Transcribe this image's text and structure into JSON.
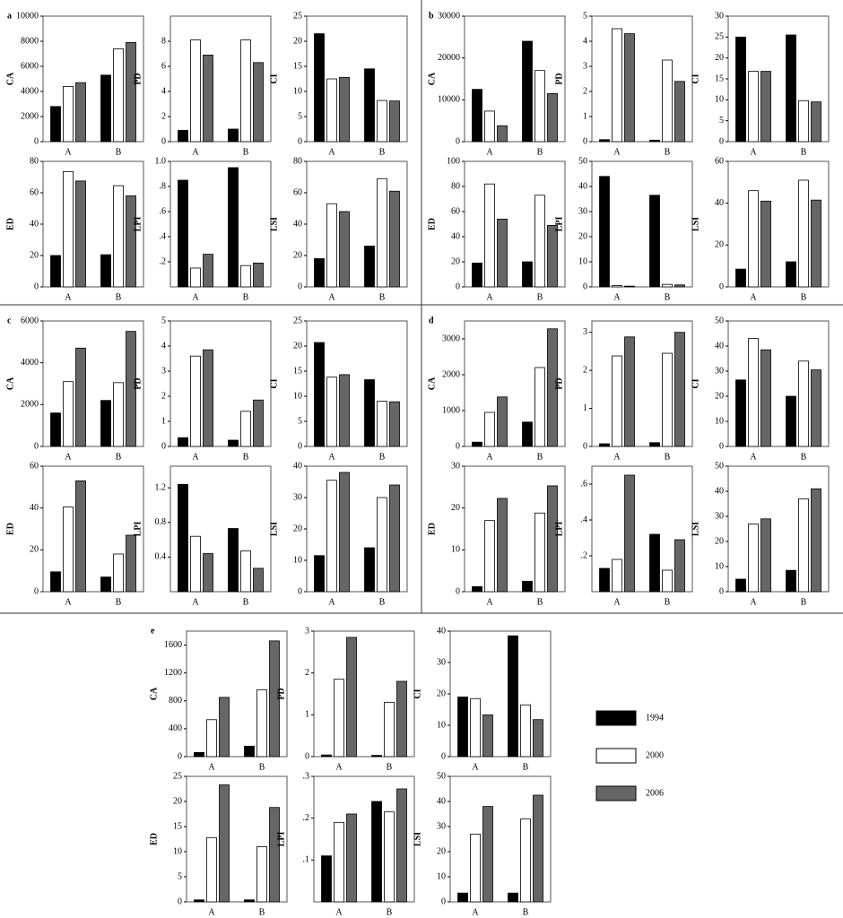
{
  "legend": {
    "series": [
      {
        "name": "1994",
        "color": "#000000"
      },
      {
        "name": "2000",
        "color": "#ffffff"
      },
      {
        "name": "2006",
        "color": "#666666"
      }
    ]
  },
  "chart_data": [
    {
      "type": "bar",
      "panel": "a",
      "ylabel": "CA",
      "categories": [
        "A",
        "B"
      ],
      "series": [
        {
          "values": [
            2800,
            5300
          ]
        },
        {
          "values": [
            4400,
            7400
          ]
        },
        {
          "values": [
            4700,
            7900
          ]
        }
      ],
      "ylim": [
        0,
        10000
      ],
      "yticks": [
        0,
        2000,
        4000,
        6000,
        8000,
        10000
      ]
    },
    {
      "type": "bar",
      "ylabel": "PD",
      "categories": [
        "A",
        "B"
      ],
      "series": [
        {
          "values": [
            0.9,
            1.0
          ]
        },
        {
          "values": [
            8.1,
            8.1
          ]
        },
        {
          "values": [
            6.9,
            6.3
          ]
        }
      ],
      "ylim": [
        0,
        10
      ],
      "yticks": [
        0,
        2,
        4,
        6,
        8
      ]
    },
    {
      "type": "bar",
      "ylabel": "CI",
      "categories": [
        "A",
        "B"
      ],
      "series": [
        {
          "values": [
            21.5,
            14.5
          ]
        },
        {
          "values": [
            12.5,
            8.2
          ]
        },
        {
          "values": [
            12.8,
            8.1
          ]
        }
      ],
      "ylim": [
        0,
        25
      ],
      "yticks": [
        0,
        5,
        10,
        15,
        20,
        25
      ]
    },
    {
      "type": "bar",
      "ylabel": "ED",
      "categories": [
        "A",
        "B"
      ],
      "series": [
        {
          "values": [
            20,
            20.5
          ]
        },
        {
          "values": [
            73.5,
            64.5
          ]
        },
        {
          "values": [
            67.5,
            58
          ]
        }
      ],
      "ylim": [
        0,
        80
      ],
      "yticks": [
        0,
        20,
        40,
        60,
        80
      ]
    },
    {
      "type": "bar",
      "ylabel": "LPI",
      "categories": [
        "A",
        "B"
      ],
      "series": [
        {
          "values": [
            0.85,
            0.95
          ]
        },
        {
          "values": [
            0.15,
            0.17
          ]
        },
        {
          "values": [
            0.26,
            0.19
          ]
        }
      ],
      "ylim": [
        0,
        1.0
      ],
      "yticks": [
        {
          "value": 0.2,
          "label": ".2"
        },
        {
          "value": 0.4,
          "label": ".4"
        },
        {
          "value": 0.6,
          "label": ".6"
        },
        {
          "value": 0.8,
          "label": ".8"
        },
        {
          "value": 1.0,
          "label": "1.0"
        }
      ]
    },
    {
      "type": "bar",
      "ylabel": "LSI",
      "categories": [
        "A",
        "B"
      ],
      "series": [
        {
          "values": [
            18,
            26
          ]
        },
        {
          "values": [
            53,
            69
          ]
        },
        {
          "values": [
            48,
            61
          ]
        }
      ],
      "ylim": [
        0,
        80
      ],
      "yticks": [
        0,
        20,
        40,
        60,
        80
      ]
    },
    {
      "type": "bar",
      "panel": "b",
      "ylabel": "CA",
      "categories": [
        "A",
        "B"
      ],
      "series": [
        {
          "values": [
            12500,
            24000
          ]
        },
        {
          "values": [
            7300,
            17000
          ]
        },
        {
          "values": [
            3800,
            11500
          ]
        }
      ],
      "ylim": [
        0,
        30000
      ],
      "yticks": [
        0,
        10000,
        20000,
        30000
      ]
    },
    {
      "type": "bar",
      "ylabel": "PD",
      "categories": [
        "A",
        "B"
      ],
      "series": [
        {
          "values": [
            0.08,
            0.06
          ]
        },
        {
          "values": [
            4.5,
            3.25
          ]
        },
        {
          "values": [
            4.3,
            2.4
          ]
        }
      ],
      "ylim": [
        0,
        5
      ],
      "yticks": [
        0,
        1,
        2,
        3,
        4,
        5
      ]
    },
    {
      "type": "bar",
      "ylabel": "CI",
      "categories": [
        "A",
        "B"
      ],
      "series": [
        {
          "values": [
            25,
            25.5
          ]
        },
        {
          "values": [
            16.8,
            9.8
          ]
        },
        {
          "values": [
            16.8,
            9.5
          ]
        }
      ],
      "ylim": [
        0,
        30
      ],
      "yticks": [
        0,
        5,
        10,
        15,
        20,
        25,
        30
      ]
    },
    {
      "type": "bar",
      "ylabel": "ED",
      "categories": [
        "A",
        "B"
      ],
      "series": [
        {
          "values": [
            19,
            20
          ]
        },
        {
          "values": [
            82,
            73
          ]
        },
        {
          "values": [
            54,
            49
          ]
        }
      ],
      "ylim": [
        0,
        100
      ],
      "yticks": [
        0,
        20,
        40,
        60,
        80,
        100
      ]
    },
    {
      "type": "bar",
      "ylabel": "LPI",
      "categories": [
        "A",
        "B"
      ],
      "series": [
        {
          "values": [
            44,
            36.5
          ]
        },
        {
          "values": [
            0.5,
            1
          ]
        },
        {
          "values": [
            0.3,
            0.8
          ]
        }
      ],
      "ylim": [
        0,
        50
      ],
      "yticks": [
        0,
        10,
        20,
        30,
        40,
        50
      ]
    },
    {
      "type": "bar",
      "ylabel": "LSI",
      "categories": [
        "A",
        "B"
      ],
      "series": [
        {
          "values": [
            8.5,
            12
          ]
        },
        {
          "values": [
            46,
            51
          ]
        },
        {
          "values": [
            41,
            41.5
          ]
        }
      ],
      "ylim": [
        0,
        60
      ],
      "yticks": [
        0,
        20,
        40,
        60
      ]
    },
    {
      "type": "bar",
      "panel": "c",
      "ylabel": "CA",
      "categories": [
        "A",
        "B"
      ],
      "series": [
        {
          "values": [
            1600,
            2200
          ]
        },
        {
          "values": [
            3100,
            3050
          ]
        },
        {
          "values": [
            4700,
            5500
          ]
        }
      ],
      "ylim": [
        0,
        6000
      ],
      "yticks": [
        0,
        2000,
        4000,
        6000
      ]
    },
    {
      "type": "bar",
      "ylabel": "PD",
      "categories": [
        "A",
        "B"
      ],
      "series": [
        {
          "values": [
            0.35,
            0.25
          ]
        },
        {
          "values": [
            3.6,
            1.4
          ]
        },
        {
          "values": [
            3.85,
            1.85
          ]
        }
      ],
      "ylim": [
        0,
        5
      ],
      "yticks": [
        0,
        1,
        2,
        3,
        4,
        5
      ]
    },
    {
      "type": "bar",
      "ylabel": "CI",
      "categories": [
        "A",
        "B"
      ],
      "series": [
        {
          "values": [
            20.7,
            13.3
          ]
        },
        {
          "values": [
            13.8,
            9
          ]
        },
        {
          "values": [
            14.3,
            8.9
          ]
        }
      ],
      "ylim": [
        0,
        25
      ],
      "yticks": [
        0,
        5,
        10,
        15,
        20,
        25
      ]
    },
    {
      "type": "bar",
      "ylabel": "ED",
      "categories": [
        "A",
        "B"
      ],
      "series": [
        {
          "values": [
            9.5,
            7
          ]
        },
        {
          "values": [
            40.5,
            18
          ]
        },
        {
          "values": [
            53,
            27
          ]
        }
      ],
      "ylim": [
        0,
        60
      ],
      "yticks": [
        0,
        20,
        40,
        60
      ]
    },
    {
      "type": "bar",
      "ylabel": "LPI",
      "categories": [
        "A",
        "B"
      ],
      "series": [
        {
          "values": [
            1.24,
            0.73
          ]
        },
        {
          "values": [
            0.64,
            0.47
          ]
        },
        {
          "values": [
            0.44,
            0.27
          ]
        }
      ],
      "ylim": [
        0,
        1.45
      ],
      "yticks": [
        0.4,
        0.8,
        1.2
      ]
    },
    {
      "type": "bar",
      "ylabel": "LSI",
      "categories": [
        "A",
        "B"
      ],
      "series": [
        {
          "values": [
            11.5,
            14
          ]
        },
        {
          "values": [
            35.5,
            30
          ]
        },
        {
          "values": [
            38,
            34
          ]
        }
      ],
      "ylim": [
        0,
        40
      ],
      "yticks": [
        0,
        10,
        20,
        30,
        40
      ]
    },
    {
      "type": "bar",
      "panel": "d",
      "ylabel": "CA",
      "categories": [
        "A",
        "B"
      ],
      "series": [
        {
          "values": [
            120,
            680
          ]
        },
        {
          "values": [
            950,
            2200
          ]
        },
        {
          "values": [
            1380,
            3280
          ]
        }
      ],
      "ylim": [
        0,
        3500
      ],
      "yticks": [
        0,
        1000,
        2000,
        3000
      ]
    },
    {
      "type": "bar",
      "ylabel": "PD",
      "categories": [
        "A",
        "B"
      ],
      "series": [
        {
          "values": [
            0.07,
            0.1
          ]
        },
        {
          "values": [
            2.38,
            2.45
          ]
        },
        {
          "values": [
            2.88,
            3.0
          ]
        }
      ],
      "ylim": [
        0,
        3.3
      ],
      "yticks": [
        0,
        1,
        2,
        3
      ]
    },
    {
      "type": "bar",
      "ylabel": "CI",
      "categories": [
        "A",
        "B"
      ],
      "series": [
        {
          "values": [
            26.5,
            20
          ]
        },
        {
          "values": [
            43,
            34
          ]
        },
        {
          "values": [
            38.5,
            30.5
          ]
        }
      ],
      "ylim": [
        0,
        50
      ],
      "yticks": [
        0,
        10,
        20,
        30,
        40,
        50
      ]
    },
    {
      "type": "bar",
      "ylabel": "ED",
      "categories": [
        "A",
        "B"
      ],
      "series": [
        {
          "values": [
            1.2,
            2.5
          ]
        },
        {
          "values": [
            17,
            18.8
          ]
        },
        {
          "values": [
            22.3,
            25.3
          ]
        }
      ],
      "ylim": [
        0,
        30
      ],
      "yticks": [
        0,
        10,
        20,
        30
      ]
    },
    {
      "type": "bar",
      "ylabel": "LPI",
      "categories": [
        "A",
        "B"
      ],
      "series": [
        {
          "values": [
            0.13,
            0.32
          ]
        },
        {
          "values": [
            0.18,
            0.12
          ]
        },
        {
          "values": [
            0.65,
            0.29
          ]
        }
      ],
      "ylim": [
        0,
        0.7
      ],
      "yticks": [
        {
          "value": 0.2,
          "label": ".2"
        },
        {
          "value": 0.4,
          "label": ".4"
        },
        {
          "value": 0.6,
          "label": ".6"
        }
      ]
    },
    {
      "type": "bar",
      "ylabel": "LSI",
      "categories": [
        "A",
        "B"
      ],
      "series": [
        {
          "values": [
            5,
            8.5
          ]
        },
        {
          "values": [
            27,
            37
          ]
        },
        {
          "values": [
            29,
            41
          ]
        }
      ],
      "ylim": [
        0,
        50
      ],
      "yticks": [
        0,
        10,
        20,
        30,
        40,
        50
      ]
    },
    {
      "type": "bar",
      "panel": "e",
      "ylabel": "CA",
      "categories": [
        "A",
        "B"
      ],
      "series": [
        {
          "values": [
            60,
            150
          ]
        },
        {
          "values": [
            530,
            960
          ]
        },
        {
          "values": [
            850,
            1660
          ]
        }
      ],
      "ylim": [
        0,
        1800
      ],
      "yticks": [
        0,
        400,
        800,
        1200,
        1600
      ]
    },
    {
      "type": "bar",
      "ylabel": "PD",
      "categories": [
        "A",
        "B"
      ],
      "series": [
        {
          "values": [
            0.04,
            0.03
          ]
        },
        {
          "values": [
            1.85,
            1.3
          ]
        },
        {
          "values": [
            2.85,
            1.8
          ]
        }
      ],
      "ylim": [
        0,
        3
      ],
      "yticks": [
        0,
        1,
        2,
        3
      ]
    },
    {
      "type": "bar",
      "ylabel": "CI",
      "categories": [
        "A",
        "B"
      ],
      "series": [
        {
          "values": [
            19,
            38.5
          ]
        },
        {
          "values": [
            18.5,
            16.5
          ]
        },
        {
          "values": [
            13.3,
            11.8
          ]
        }
      ],
      "ylim": [
        0,
        40
      ],
      "yticks": [
        0,
        10,
        20,
        30,
        40
      ]
    },
    {
      "type": "bar",
      "ylabel": "ED",
      "categories": [
        "A",
        "B"
      ],
      "series": [
        {
          "values": [
            0.4,
            0.4
          ]
        },
        {
          "values": [
            12.8,
            11
          ]
        },
        {
          "values": [
            23.3,
            18.8
          ]
        }
      ],
      "ylim": [
        0,
        25
      ],
      "yticks": [
        0,
        5,
        10,
        15,
        20,
        25
      ]
    },
    {
      "type": "bar",
      "ylabel": "LPI",
      "categories": [
        "A",
        "B"
      ],
      "series": [
        {
          "values": [
            0.11,
            0.24
          ]
        },
        {
          "values": [
            0.19,
            0.215
          ]
        },
        {
          "values": [
            0.21,
            0.27
          ]
        }
      ],
      "ylim": [
        0,
        0.3
      ],
      "yticks": [
        {
          "value": 0.1,
          "label": ".1"
        },
        {
          "value": 0.2,
          "label": ".2"
        },
        {
          "value": 0.3,
          "label": ".3"
        }
      ]
    },
    {
      "type": "bar",
      "ylabel": "LSI",
      "categories": [
        "A",
        "B"
      ],
      "series": [
        {
          "values": [
            3.5,
            3.5
          ]
        },
        {
          "values": [
            27,
            33
          ]
        },
        {
          "values": [
            38,
            42.5
          ]
        }
      ],
      "ylim": [
        0,
        50
      ],
      "yticks": [
        0,
        10,
        20,
        30,
        40,
        50
      ]
    }
  ]
}
